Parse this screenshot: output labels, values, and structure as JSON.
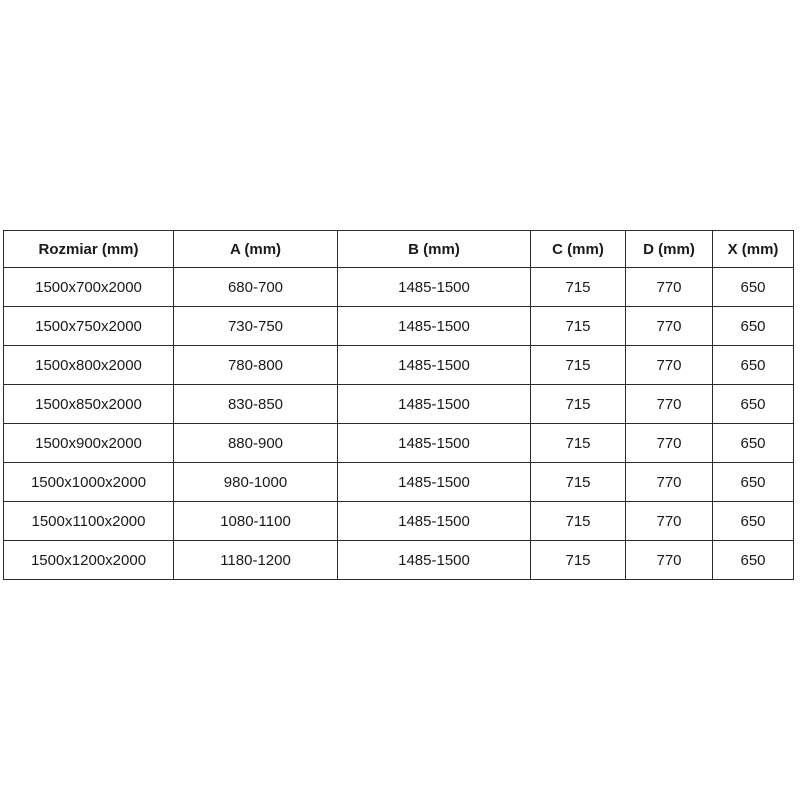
{
  "table": {
    "headers": [
      "Rozmiar (mm)",
      "A (mm)",
      "B (mm)",
      "C (mm)",
      "D (mm)",
      "X (mm)"
    ],
    "rows": [
      [
        "1500x700x2000",
        "680-700",
        "1485-1500",
        "715",
        "770",
        "650"
      ],
      [
        "1500x750x2000",
        "730-750",
        "1485-1500",
        "715",
        "770",
        "650"
      ],
      [
        "1500x800x2000",
        "780-800",
        "1485-1500",
        "715",
        "770",
        "650"
      ],
      [
        "1500x850x2000",
        "830-850",
        "1485-1500",
        "715",
        "770",
        "650"
      ],
      [
        "1500x900x2000",
        "880-900",
        "1485-1500",
        "715",
        "770",
        "650"
      ],
      [
        "1500x1000x2000",
        "980-1000",
        "1485-1500",
        "715",
        "770",
        "650"
      ],
      [
        "1500x1100x2000",
        "1080-1100",
        "1485-1500",
        "715",
        "770",
        "650"
      ],
      [
        "1500x1200x2000",
        "1180-1200",
        "1485-1500",
        "715",
        "770",
        "650"
      ]
    ],
    "colors": {
      "border": "#2b2b2b",
      "text": "#1a1a1a",
      "background": "#ffffff"
    }
  }
}
